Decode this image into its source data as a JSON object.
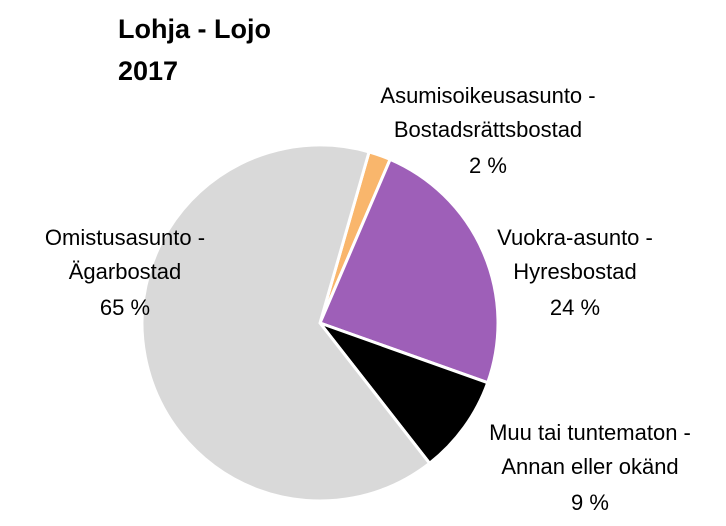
{
  "chart_data": {
    "type": "pie",
    "title": [
      "Lohja - Lojo",
      "2017"
    ],
    "categories": [
      [
        "Asumisoikeusasunto -",
        "Bostadsrättsbostad"
      ],
      [
        "Vuokra-asunto -",
        "Hyresbostad"
      ],
      [
        "Muu tai tuntematon -",
        "Annan eller okänd"
      ],
      [
        "Omistusasunto -",
        "Ägarbostad"
      ]
    ],
    "values": [
      2,
      24,
      9,
      65
    ],
    "value_labels": [
      "2 %",
      "24 %",
      "9 %",
      "65 %"
    ],
    "colors": [
      "#f9b66c",
      "#9e5fb8",
      "#000000",
      "#d9d9d9"
    ]
  }
}
